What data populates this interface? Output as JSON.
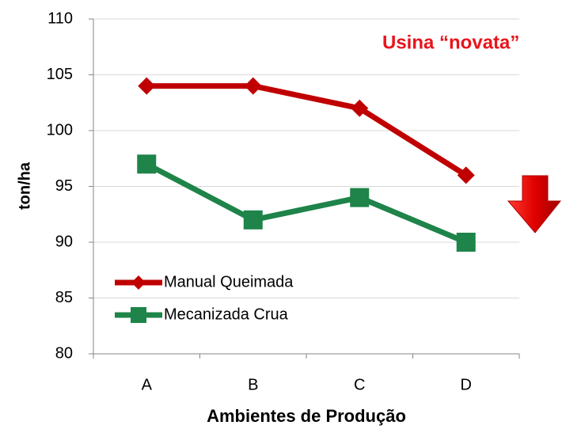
{
  "chart_data": {
    "type": "line",
    "annotation": "Usina “novata”",
    "x_label": "Ambientes de Produção",
    "y_label": "ton/ha",
    "categories": [
      "A",
      "B",
      "C",
      "D"
    ],
    "series": [
      {
        "name": "Manual Queimada",
        "color": "#c00000",
        "marker": "diamond",
        "values": [
          104,
          104,
          102,
          96
        ]
      },
      {
        "name": "Mecanizada Crua",
        "color": "#1e8449",
        "marker": "square",
        "values": [
          97,
          92,
          94,
          90
        ]
      }
    ],
    "ylim": [
      80,
      110
    ],
    "yticks": [
      80,
      85,
      90,
      95,
      100,
      105,
      110
    ],
    "grid": true,
    "legend": "lower left"
  }
}
